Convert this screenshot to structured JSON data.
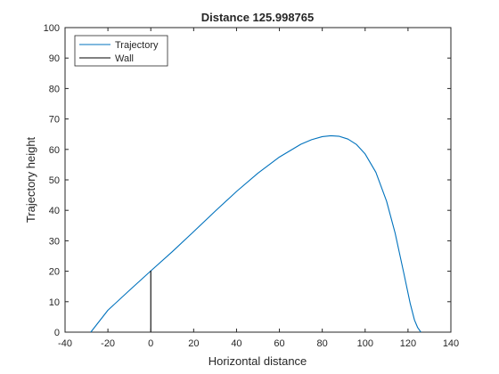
{
  "chart_data": {
    "type": "line",
    "title": "Distance 125.998765",
    "xlabel": "Horizontal distance",
    "ylabel": "Trajectory height",
    "xlim": [
      -40,
      140
    ],
    "ylim": [
      0,
      100
    ],
    "xticks": [
      -40,
      -20,
      0,
      20,
      40,
      60,
      80,
      100,
      120,
      140
    ],
    "yticks": [
      0,
      10,
      20,
      30,
      40,
      50,
      60,
      70,
      80,
      90,
      100
    ],
    "grid": false,
    "legend_position": "top-left",
    "series": [
      {
        "name": "Trajectory",
        "color": "#0072BD",
        "x": [
          -28,
          -20,
          -10,
          0,
          10,
          20,
          30,
          40,
          50,
          60,
          70,
          75,
          80,
          84,
          88,
          92,
          96,
          100,
          105,
          110,
          114,
          118,
          121,
          123,
          124.5,
          126
        ],
        "y": [
          0,
          7.2,
          13.7,
          20.1,
          26.4,
          33,
          39.7,
          46.2,
          52.2,
          57.5,
          61.7,
          63.2,
          64.2,
          64.5,
          64.3,
          63.4,
          61.6,
          58.5,
          52.5,
          43,
          32.5,
          19.5,
          9.5,
          4,
          1.5,
          0
        ]
      },
      {
        "name": "Wall",
        "color": "#000000",
        "x": [
          0,
          0
        ],
        "y": [
          0,
          20.2
        ]
      }
    ]
  }
}
